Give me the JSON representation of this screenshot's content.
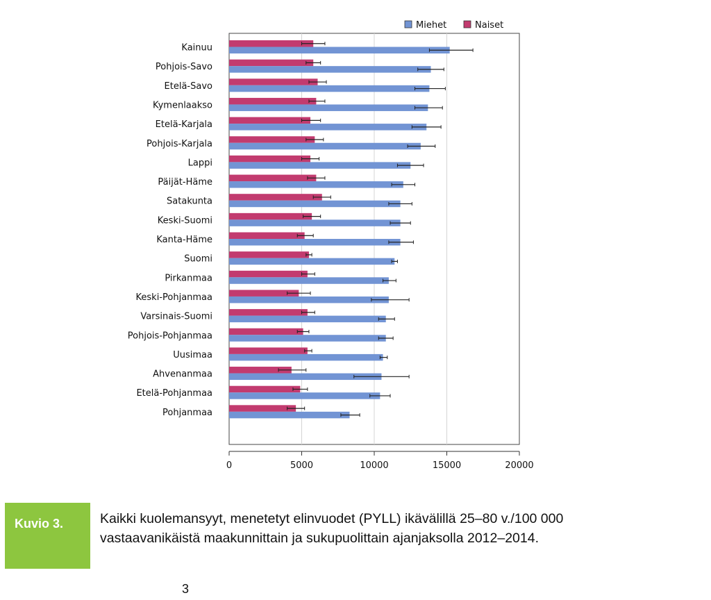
{
  "chart_data": {
    "type": "bar",
    "orientation": "horizontal",
    "title": "",
    "xlabel": "",
    "ylabel": "",
    "xlim": [
      0,
      20000
    ],
    "x_ticks": [
      0,
      5000,
      10000,
      15000,
      20000
    ],
    "grid": true,
    "legend_position": "top-right",
    "categories": [
      "Kainuu",
      "Pohjois-Savo",
      "Etelä-Savo",
      "Kymenlaakso",
      "Etelä-Karjala",
      "Pohjois-Karjala",
      "Lappi",
      "Päijät-Häme",
      "Satakunta",
      "Keski-Suomi",
      "Kanta-Häme",
      "Suomi",
      "Pirkanmaa",
      "Keski-Pohjanmaa",
      "Varsinais-Suomi",
      "Pohjois-Pohjanmaa",
      "Uusimaa",
      "Ahvenanmaa",
      "Etelä-Pohjanmaa",
      "Pohjanmaa"
    ],
    "series": [
      {
        "name": "Miehet",
        "color": "#7294d4",
        "values": [
          15200,
          13900,
          13800,
          13700,
          13600,
          13200,
          12500,
          12000,
          11800,
          11800,
          11800,
          11400,
          11000,
          11000,
          10800,
          10800,
          10600,
          10500,
          10400,
          8300
        ],
        "err_low": [
          13800,
          13000,
          12800,
          12800,
          12600,
          12300,
          11600,
          11200,
          11000,
          11100,
          11000,
          11200,
          10600,
          9800,
          10300,
          10300,
          10400,
          8600,
          9700,
          7700
        ],
        "err_high": [
          16800,
          14800,
          14900,
          14700,
          14600,
          14200,
          13400,
          12800,
          12600,
          12500,
          12700,
          11600,
          11500,
          12400,
          11400,
          11300,
          10900,
          12400,
          11100,
          9000
        ]
      },
      {
        "name": "Naiset",
        "color": "#c23b6f",
        "values": [
          5800,
          5800,
          6100,
          6000,
          5600,
          5900,
          5600,
          6000,
          6400,
          5700,
          5200,
          5500,
          5400,
          4800,
          5400,
          5100,
          5400,
          4300,
          4900,
          4600
        ],
        "err_low": [
          5000,
          5300,
          5500,
          5500,
          5000,
          5300,
          5000,
          5400,
          5800,
          5100,
          4700,
          5300,
          5000,
          4000,
          5000,
          4700,
          5200,
          3400,
          4400,
          4000
        ],
        "err_high": [
          6600,
          6300,
          6700,
          6600,
          6300,
          6500,
          6200,
          6600,
          7000,
          6300,
          5800,
          5700,
          5900,
          5600,
          5900,
          5500,
          5700,
          5300,
          5400,
          5200
        ]
      }
    ]
  },
  "caption": {
    "label": "Kuvio 3.",
    "text": "Kaikki kuolemansyyt, menetetyt elinvuodet (PYLL) ikävälillä 25–80 v./100 000 vastaavanikäistä maakunnittain ja sukupuolittain ajanjaksolla 2012–2014."
  },
  "page_number": "3"
}
